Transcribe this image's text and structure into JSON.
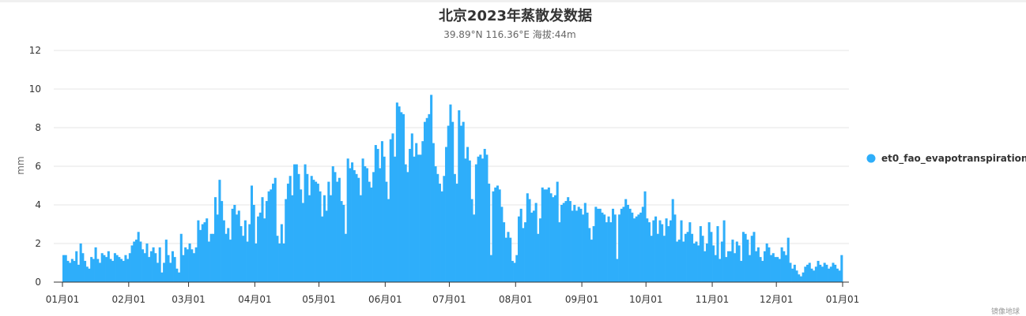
{
  "chart_data": {
    "type": "bar",
    "title": "北京2023年蒸散发数据",
    "subtitle": "39.89°N 116.36°E 海拔:44m",
    "ylabel": "mm",
    "xlabel": "",
    "ylim": [
      0,
      12
    ],
    "yticks": [
      0,
      2,
      4,
      6,
      8,
      10,
      12
    ],
    "x_tick_labels": [
      "01月01",
      "02月01",
      "03月01",
      "04月01",
      "05月01",
      "06月01",
      "07月01",
      "08月01",
      "09月01",
      "10月01",
      "11月01",
      "12月01",
      "01月01"
    ],
    "grid": true,
    "legend_position": "right",
    "series": [
      {
        "name": "et0_fao_evapotranspiration",
        "color": "#2eaefa",
        "monthly_values": [
          [
            1.4,
            1.4,
            1.1,
            1.0,
            1.2,
            1.1,
            1.6,
            0.9,
            2.0,
            1.5,
            1.1,
            0.8,
            0.7,
            1.3,
            1.2,
            1.8,
            1.2,
            1.0,
            1.5,
            1.4,
            1.3,
            1.6,
            1.2,
            1.1,
            1.5,
            1.4,
            1.3,
            1.2,
            1.1,
            1.4,
            1.2
          ],
          [
            1.5,
            1.9,
            2.1,
            2.2,
            2.6,
            2.1,
            1.7,
            1.5,
            2.0,
            1.3,
            1.6,
            1.8,
            1.5,
            1.0,
            1.8,
            0.5,
            1.0,
            2.2,
            1.4,
            1.0,
            1.6,
            1.3,
            0.7,
            0.5,
            2.5,
            1.4,
            1.8,
            1.7
          ],
          [
            2.0,
            1.7,
            1.5,
            1.8,
            3.2,
            2.7,
            3.0,
            3.1,
            3.3,
            2.1,
            2.5,
            2.5,
            4.4,
            3.5,
            5.3,
            4.2,
            3.2,
            2.5,
            2.8,
            2.2,
            3.8,
            4.0,
            3.5,
            3.7,
            2.9,
            2.4,
            3.2,
            2.1,
            3.0,
            5.0,
            4.0
          ],
          [
            2.0,
            3.4,
            3.6,
            4.4,
            3.3,
            4.2,
            4.7,
            4.8,
            5.1,
            5.4,
            2.4,
            2.0,
            3.0,
            2.0,
            4.3,
            5.1,
            5.5,
            4.5,
            6.1,
            6.1,
            5.6,
            4.8,
            4.1,
            6.1,
            5.6,
            4.5,
            5.5,
            5.3,
            5.2,
            5.1
          ],
          [
            4.7,
            3.4,
            4.5,
            3.7,
            5.2,
            4.5,
            6.0,
            5.7,
            5.2,
            5.4,
            4.2,
            4.0,
            2.5,
            6.4,
            5.9,
            6.2,
            5.8,
            5.6,
            5.4,
            4.5,
            6.4,
            6.0,
            5.9,
            5.2,
            4.9,
            5.7,
            7.1,
            6.9,
            5.9,
            7.3,
            6.5
          ],
          [
            5.2,
            4.3,
            7.4,
            7.7,
            6.5,
            9.3,
            9.1,
            8.8,
            8.7,
            6.1,
            5.7,
            6.9,
            7.7,
            6.5,
            7.2,
            6.6,
            6.6,
            7.3,
            8.3,
            8.5,
            8.7,
            9.7,
            7.2,
            6.0,
            5.6,
            5.1,
            4.7,
            5.5,
            7.0,
            8.1
          ],
          [
            9.2,
            8.3,
            5.6,
            5.1,
            8.9,
            8.1,
            8.3,
            6.4,
            7.0,
            6.3,
            4.3,
            3.5,
            6.1,
            6.5,
            6.6,
            6.4,
            6.9,
            6.6,
            5.1,
            1.4,
            4.7,
            4.9,
            5.0,
            4.8,
            3.9,
            3.1,
            2.3,
            2.6,
            2.3,
            1.1,
            1.0
          ],
          [
            1.4,
            3.4,
            3.8,
            2.8,
            3.1,
            4.6,
            4.3,
            3.6,
            3.7,
            4.1,
            2.5,
            3.3,
            4.9,
            4.8,
            4.8,
            4.9,
            4.6,
            4.4,
            4.5,
            5.2,
            3.1,
            4.0,
            4.1,
            4.2,
            4.4,
            4.2,
            3.7,
            4.0,
            3.7,
            3.9,
            3.8
          ],
          [
            3.5,
            4.1,
            3.6,
            2.8,
            2.2,
            2.9,
            3.9,
            3.8,
            3.8,
            3.6,
            3.5,
            3.1,
            3.4,
            3.1,
            3.8,
            3.5,
            1.2,
            3.5,
            3.8,
            3.9,
            4.3,
            4.0,
            3.8,
            3.6,
            3.3,
            3.4,
            3.5,
            3.6,
            3.9,
            4.7
          ],
          [
            3.3,
            3.1,
            2.4,
            3.2,
            3.4,
            2.5,
            3.2,
            3.0,
            2.4,
            3.3,
            2.9,
            3.2,
            4.3,
            3.5,
            2.1,
            2.2,
            3.2,
            2.1,
            2.5,
            2.6,
            3.1,
            2.5,
            2.0,
            2.1,
            1.9,
            2.9,
            2.4,
            1.6,
            2.0,
            3.1,
            2.6
          ],
          [
            1.9,
            1.4,
            2.9,
            1.2,
            2.1,
            3.2,
            1.3,
            1.6,
            1.6,
            2.2,
            1.5,
            2.1,
            1.9,
            1.1,
            2.6,
            2.5,
            2.2,
            1.4,
            2.4,
            2.6,
            1.6,
            1.8,
            1.3,
            1.1,
            1.6,
            2.0,
            1.8,
            1.4,
            1.5,
            1.3
          ],
          [
            1.3,
            1.2,
            1.8,
            1.6,
            1.4,
            2.3,
            1.0,
            0.7,
            0.9,
            0.6,
            0.4,
            0.3,
            0.5,
            0.8,
            0.9,
            1.0,
            0.7,
            0.6,
            0.8,
            1.1,
            0.9,
            0.8,
            1.0,
            0.9,
            0.7,
            0.8,
            1.0,
            0.9,
            0.7,
            0.6,
            1.4
          ]
        ]
      }
    ]
  },
  "credit": "镜像地球"
}
